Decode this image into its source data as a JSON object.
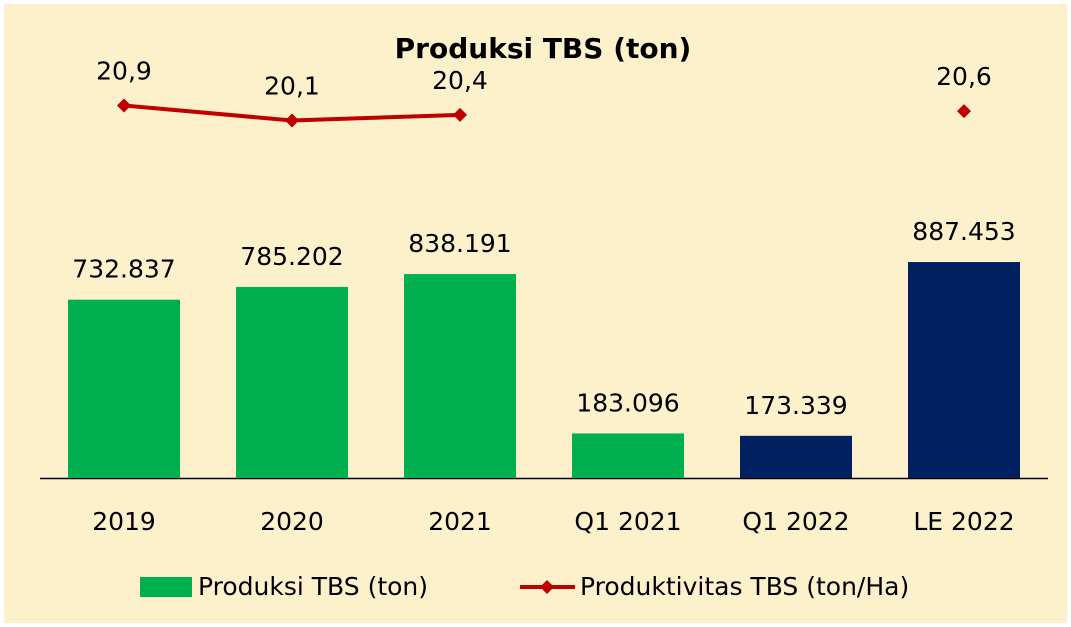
{
  "chart_data": {
    "type": "bar-line",
    "title": "Produksi TBS (ton)",
    "categories": [
      "2019",
      "2020",
      "2021",
      "Q1 2021",
      "Q1 2022",
      "LE 2022"
    ],
    "series": [
      {
        "name": "Produksi TBS (ton)",
        "type": "bar",
        "color": "#00b050",
        "colors": [
          "#00b050",
          "#00b050",
          "#00b050",
          "#00b050",
          "#002060",
          "#002060"
        ],
        "values": [
          732837,
          785202,
          838191,
          183096,
          173339,
          887453
        ],
        "value_labels": [
          "732.837",
          "785.202",
          "838.191",
          "183.096",
          "173.339",
          "887.453"
        ]
      },
      {
        "name": "Produktivitas TBS (ton/Ha)",
        "type": "line",
        "axis": "y2",
        "color": "#c00000",
        "values": [
          20.9,
          20.1,
          20.4,
          null,
          null,
          20.6
        ],
        "value_labels": [
          "20,9",
          "20,1",
          "20,4",
          null,
          null,
          "20,6"
        ]
      }
    ],
    "ylim": [
      0,
      1800000
    ],
    "y2lim": [
      1,
      24.4
    ]
  }
}
